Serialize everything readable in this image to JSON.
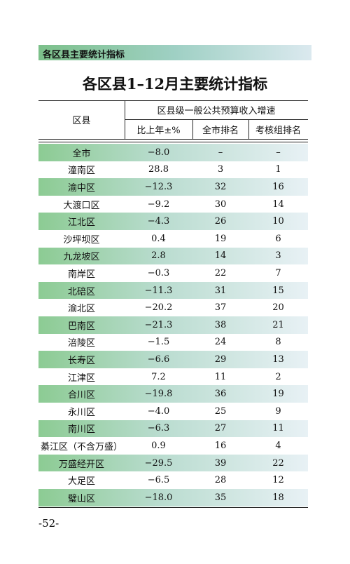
{
  "header": {
    "section": "各区县主要统计指标"
  },
  "title": "各区县1–12月主要统计指标",
  "table": {
    "column_header": "区县",
    "group_header": "区县级一般公共预算收入增速",
    "sub_headers": [
      "比上年±%",
      "全市排名",
      "考核组排名"
    ],
    "rows": [
      [
        "全市",
        "−8.0",
        "–",
        "–"
      ],
      [
        "潼南区",
        "28.8",
        "3",
        "1"
      ],
      [
        "渝中区",
        "−12.3",
        "32",
        "16"
      ],
      [
        "大渡口区",
        "−9.2",
        "30",
        "14"
      ],
      [
        "江北区",
        "−4.3",
        "26",
        "10"
      ],
      [
        "沙坪坝区",
        "0.4",
        "19",
        "6"
      ],
      [
        "九龙坡区",
        "2.8",
        "14",
        "3"
      ],
      [
        "南岸区",
        "−0.3",
        "22",
        "7"
      ],
      [
        "北碚区",
        "−11.3",
        "31",
        "15"
      ],
      [
        "渝北区",
        "−20.2",
        "37",
        "20"
      ],
      [
        "巴南区",
        "−21.3",
        "38",
        "21"
      ],
      [
        "涪陵区",
        "−1.5",
        "24",
        "8"
      ],
      [
        "长寿区",
        "−6.6",
        "29",
        "13"
      ],
      [
        "江津区",
        "7.2",
        "11",
        "2"
      ],
      [
        "合川区",
        "−19.8",
        "36",
        "19"
      ],
      [
        "永川区",
        "−4.0",
        "25",
        "9"
      ],
      [
        "南川区",
        "−6.3",
        "27",
        "11"
      ],
      [
        "綦江区（不含万盛）",
        "0.9",
        "16",
        "4"
      ],
      [
        "万盛经开区",
        "−29.5",
        "39",
        "22"
      ],
      [
        "大足区",
        "−6.5",
        "28",
        "12"
      ],
      [
        "璧山区",
        "−18.0",
        "35",
        "18"
      ]
    ]
  },
  "footer": {
    "page_number": "-52-"
  }
}
